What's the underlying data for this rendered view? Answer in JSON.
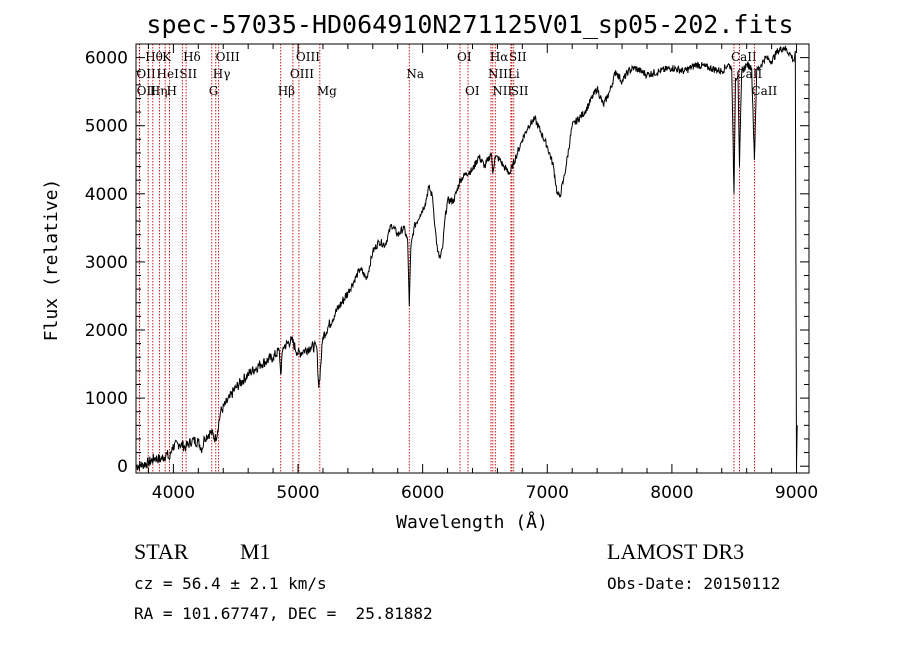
{
  "chart_data": {
    "type": "line",
    "title": "spec-57035-HD064910N271125V01_sp05-202.fits",
    "xlabel": "Wavelength (Å)",
    "ylabel": "Flux (relative)",
    "xlim": [
      3700,
      9100
    ],
    "ylim": [
      -100,
      6200
    ],
    "x_ticks": [
      4000,
      5000,
      6000,
      7000,
      8000,
      9000
    ],
    "y_ticks": [
      0,
      1000,
      2000,
      3000,
      4000,
      5000,
      6000
    ],
    "series": [
      {
        "name": "spectrum",
        "x": [
          3700,
          3750,
          3800,
          3850,
          3900,
          3950,
          3968,
          3990,
          4050,
          4101,
          4150,
          4200,
          4230,
          4250,
          4300,
          4340,
          4380,
          4450,
          4500,
          4600,
          4700,
          4800,
          4850,
          4861,
          4880,
          4950,
          5000,
          5050,
          5100,
          5150,
          5167,
          5200,
          5300,
          5400,
          5500,
          5550,
          5600,
          5650,
          5700,
          5750,
          5800,
          5850,
          5880,
          5893,
          5905,
          5930,
          5980,
          6020,
          6050,
          6080,
          6100,
          6120,
          6140,
          6160,
          6180,
          6200,
          6250,
          6300,
          6350,
          6400,
          6450,
          6500,
          6550,
          6563,
          6580,
          6620,
          6650,
          6700,
          6750,
          6800,
          6850,
          6900,
          6950,
          7000,
          7050,
          7080,
          7100,
          7130,
          7150,
          7200,
          7300,
          7400,
          7450,
          7500,
          7550,
          7600,
          7650,
          7700,
          7800,
          7900,
          8000,
          8100,
          8200,
          8300,
          8400,
          8450,
          8480,
          8498,
          8510,
          8530,
          8542,
          8560,
          8600,
          8640,
          8662,
          8680,
          8700,
          8750,
          8800,
          8850,
          8900,
          8950,
          8980,
          8990,
          9000,
          9005
        ],
        "y": [
          0,
          20,
          50,
          120,
          100,
          180,
          100,
          280,
          330,
          280,
          380,
          360,
          250,
          420,
          500,
          400,
          800,
          1000,
          1150,
          1350,
          1500,
          1600,
          1700,
          1350,
          1750,
          1850,
          1650,
          1700,
          1750,
          1750,
          1150,
          1900,
          2250,
          2550,
          2900,
          2750,
          3150,
          3300,
          3250,
          3550,
          3400,
          3500,
          3300,
          2350,
          3200,
          3500,
          3700,
          3850,
          4100,
          3950,
          3500,
          3150,
          3050,
          3200,
          3650,
          3900,
          3900,
          4200,
          4300,
          4350,
          4550,
          4400,
          4600,
          4300,
          4550,
          4500,
          4400,
          4300,
          4550,
          4800,
          5000,
          5100,
          4900,
          4700,
          4400,
          4000,
          3950,
          4200,
          4400,
          5000,
          5200,
          5550,
          5300,
          5500,
          5800,
          5650,
          5800,
          5850,
          5750,
          5800,
          5850,
          5800,
          5900,
          5850,
          5800,
          5900,
          5850,
          4000,
          5700,
          5750,
          4400,
          5800,
          5900,
          5850,
          4500,
          5800,
          5850,
          6000,
          5950,
          6100,
          6150,
          6050,
          5950,
          6100,
          0,
          600
        ]
      }
    ],
    "line_markers": [
      {
        "label": "Hθ",
        "wl": 3798,
        "row": 1
      },
      {
        "label": "OII",
        "wl": 3727,
        "row": 2
      },
      {
        "label": "OII",
        "wl": 3729,
        "row": 3
      },
      {
        "label": "Hη",
        "wl": 3835,
        "row": 3
      },
      {
        "label": "HeI",
        "wl": 3889,
        "row": 2
      },
      {
        "label": "K",
        "wl": 3934,
        "row": 1
      },
      {
        "label": "H",
        "wl": 3969,
        "row": 3
      },
      {
        "label": "SII",
        "wl": 4072,
        "row": 2
      },
      {
        "label": "Hδ",
        "wl": 4102,
        "row": 1
      },
      {
        "label": "OIII",
        "wl": 4363,
        "row": 1
      },
      {
        "label": "Hγ",
        "wl": 4340,
        "row": 2
      },
      {
        "label": "G",
        "wl": 4308,
        "row": 3
      },
      {
        "label": "Hβ",
        "wl": 4861,
        "row": 3
      },
      {
        "label": "OIII",
        "wl": 5007,
        "row": 1
      },
      {
        "label": "OIII",
        "wl": 4959,
        "row": 2
      },
      {
        "label": "Mg",
        "wl": 5175,
        "row": 3
      },
      {
        "label": "Na",
        "wl": 5893,
        "row": 2
      },
      {
        "label": "OI",
        "wl": 6300,
        "row": 1
      },
      {
        "label": "OI",
        "wl": 6364,
        "row": 3
      },
      {
        "label": "Hα",
        "wl": 6563,
        "row": 1
      },
      {
        "label": "NII",
        "wl": 6548,
        "row": 2
      },
      {
        "label": "NII",
        "wl": 6583,
        "row": 3
      },
      {
        "label": "SII",
        "wl": 6716,
        "row": 1
      },
      {
        "label": "Li",
        "wl": 6708,
        "row": 2
      },
      {
        "label": "SII",
        "wl": 6731,
        "row": 3
      },
      {
        "label": "CaII",
        "wl": 8498,
        "row": 1
      },
      {
        "label": "CaII",
        "wl": 8542,
        "row": 2
      },
      {
        "label": "CaII",
        "wl": 8662,
        "row": 3
      }
    ],
    "colors": {
      "spectrum": "#000000",
      "marker_line": "#cc0000",
      "axes": "#000000"
    }
  },
  "info": {
    "object_class": "STAR",
    "subclass": "M1",
    "survey": "LAMOST DR3",
    "cz": "cz = 56.4 ± 2.1 km/s",
    "obs_date": "Obs-Date: 20150112",
    "coords": "RA = 101.67747, DEC =  25.81882"
  }
}
